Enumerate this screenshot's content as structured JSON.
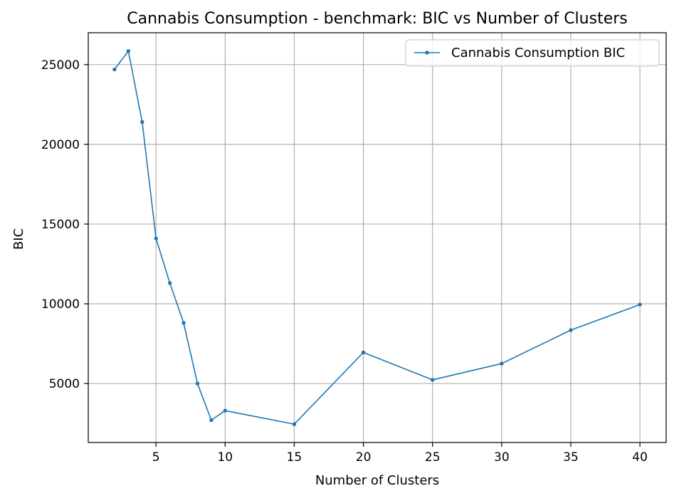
{
  "chart_data": {
    "type": "line",
    "title": "Cannabis Consumption - benchmark: BIC vs Number of Clusters",
    "xlabel": "Number of Clusters",
    "ylabel": "BIC",
    "xlim": [
      0.1,
      41.9
    ],
    "ylim": [
      1300,
      27000
    ],
    "xticks": [
      5,
      10,
      15,
      20,
      25,
      30,
      35,
      40
    ],
    "xtick_labels": [
      "5",
      "10",
      "15",
      "20",
      "25",
      "30",
      "35",
      "40"
    ],
    "yticks": [
      5000,
      10000,
      15000,
      20000,
      25000
    ],
    "ytick_labels": [
      "5000",
      "10000",
      "15000",
      "20000",
      "25000"
    ],
    "grid": true,
    "legend_position": "top-right",
    "series": [
      {
        "name": "Cannabis Consumption BIC",
        "color": "#1f77b4",
        "marker": "point",
        "x": [
          2,
          3,
          4,
          5,
          6,
          7,
          8,
          9,
          10,
          15,
          20,
          25,
          30,
          35,
          40
        ],
        "y": [
          24700,
          25850,
          21400,
          14100,
          11300,
          8800,
          5000,
          2700,
          3300,
          2450,
          6950,
          5230,
          6250,
          8350,
          9950
        ]
      }
    ]
  }
}
